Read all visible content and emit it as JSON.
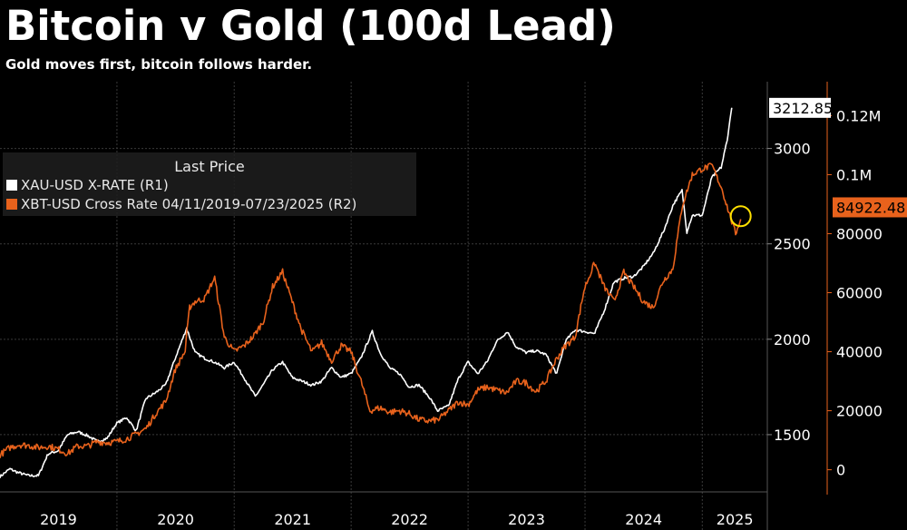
{
  "header": {
    "title": "Bitcoin v Gold (100d Lead)",
    "subtitle": "Gold moves first, bitcoin follows harder."
  },
  "legend": {
    "title": "Last Price",
    "items": [
      {
        "label": "XAU-USD X-RATE  (R1)",
        "color": "#ffffff"
      },
      {
        "label": "XBT-USD Cross Rate 04/11/2019-07/23/2025  (R2)",
        "color": "#e8621c"
      }
    ]
  },
  "chart_data": {
    "type": "line",
    "title": "Bitcoin v Gold (100d Lead)",
    "subtitle": "Gold moves first, bitcoin follows harder.",
    "x_tick_labels": [
      "2019",
      "2020",
      "2021",
      "2022",
      "2023",
      "2024",
      "2025"
    ],
    "x_range": [
      "2019-01-01",
      "2025-07-23"
    ],
    "y_axes": {
      "R1": {
        "ticks": [
          "1500",
          "2000",
          "2500",
          "3000"
        ],
        "range": [
          1200,
          3350
        ],
        "color": "#ffffff"
      },
      "R2": {
        "ticks": [
          "0",
          "20000",
          "40000",
          "60000",
          "80000",
          "0.1M",
          "0.12M"
        ],
        "range": [
          -7500,
          131500
        ],
        "color": "#e8621c"
      }
    },
    "last_price_labels": {
      "gold": "3212.85",
      "bitcoin": "84922.48"
    },
    "grid": true,
    "legend_position": "top-left",
    "series": [
      {
        "name": "XAU-USD X-RATE  (R1)",
        "axis": "R1",
        "color": "#ffffff",
        "points": [
          [
            "2019-01-01",
            1280
          ],
          [
            "2019-02-01",
            1320
          ],
          [
            "2019-03-01",
            1300
          ],
          [
            "2019-04-01",
            1285
          ],
          [
            "2019-05-01",
            1285
          ],
          [
            "2019-06-01",
            1400
          ],
          [
            "2019-07-01",
            1415
          ],
          [
            "2019-08-01",
            1500
          ],
          [
            "2019-09-01",
            1515
          ],
          [
            "2019-10-01",
            1495
          ],
          [
            "2019-11-01",
            1465
          ],
          [
            "2019-12-01",
            1480
          ],
          [
            "2020-01-01",
            1560
          ],
          [
            "2020-02-01",
            1590
          ],
          [
            "2020-03-01",
            1520
          ],
          [
            "2020-04-01",
            1690
          ],
          [
            "2020-05-01",
            1720
          ],
          [
            "2020-06-01",
            1760
          ],
          [
            "2020-07-01",
            1900
          ],
          [
            "2020-08-06",
            2060
          ],
          [
            "2020-09-01",
            1930
          ],
          [
            "2020-10-01",
            1900
          ],
          [
            "2020-11-01",
            1880
          ],
          [
            "2020-12-01",
            1850
          ],
          [
            "2021-01-01",
            1880
          ],
          [
            "2021-02-01",
            1800
          ],
          [
            "2021-03-08",
            1700
          ],
          [
            "2021-04-01",
            1760
          ],
          [
            "2021-05-01",
            1840
          ],
          [
            "2021-06-01",
            1880
          ],
          [
            "2021-07-01",
            1800
          ],
          [
            "2021-08-01",
            1780
          ],
          [
            "2021-09-01",
            1760
          ],
          [
            "2021-10-01",
            1780
          ],
          [
            "2021-11-01",
            1850
          ],
          [
            "2021-12-01",
            1800
          ],
          [
            "2022-01-01",
            1820
          ],
          [
            "2022-02-01",
            1900
          ],
          [
            "2022-03-08",
            2040
          ],
          [
            "2022-04-01",
            1930
          ],
          [
            "2022-05-01",
            1850
          ],
          [
            "2022-06-01",
            1820
          ],
          [
            "2022-07-01",
            1750
          ],
          [
            "2022-08-01",
            1760
          ],
          [
            "2022-09-01",
            1700
          ],
          [
            "2022-09-28",
            1625
          ],
          [
            "2022-11-01",
            1650
          ],
          [
            "2022-12-01",
            1790
          ],
          [
            "2023-01-01",
            1880
          ],
          [
            "2023-02-01",
            1820
          ],
          [
            "2023-03-01",
            1880
          ],
          [
            "2023-04-01",
            1990
          ],
          [
            "2023-05-04",
            2040
          ],
          [
            "2023-06-01",
            1960
          ],
          [
            "2023-07-01",
            1930
          ],
          [
            "2023-08-01",
            1940
          ],
          [
            "2023-09-01",
            1920
          ],
          [
            "2023-10-05",
            1820
          ],
          [
            "2023-11-01",
            1990
          ],
          [
            "2023-12-01",
            2050
          ],
          [
            "2024-01-01",
            2040
          ],
          [
            "2024-02-01",
            2030
          ],
          [
            "2024-03-01",
            2150
          ],
          [
            "2024-04-01",
            2300
          ],
          [
            "2024-05-01",
            2320
          ],
          [
            "2024-06-01",
            2330
          ],
          [
            "2024-07-01",
            2380
          ],
          [
            "2024-08-01",
            2450
          ],
          [
            "2024-09-01",
            2560
          ],
          [
            "2024-10-01",
            2700
          ],
          [
            "2024-10-30",
            2780
          ],
          [
            "2024-11-14",
            2560
          ],
          [
            "2024-12-01",
            2650
          ],
          [
            "2025-01-01",
            2650
          ],
          [
            "2025-02-01",
            2850
          ],
          [
            "2025-03-01",
            2900
          ],
          [
            "2025-03-20",
            3040
          ],
          [
            "2025-04-03",
            3212.85
          ]
        ]
      },
      {
        "name": "XBT-USD Cross Rate 04/11/2019-07/23/2025  (R2)",
        "axis": "R2",
        "color": "#e8621c",
        "points": [
          [
            "2019-01-01",
            5000
          ],
          [
            "2019-02-01",
            7500
          ],
          [
            "2019-03-01",
            8500
          ],
          [
            "2019-04-01",
            8200
          ],
          [
            "2019-05-01",
            7500
          ],
          [
            "2019-06-01",
            8000
          ],
          [
            "2019-07-01",
            7000
          ],
          [
            "2019-08-01",
            5500
          ],
          [
            "2019-09-01",
            8000
          ],
          [
            "2019-10-01",
            8000
          ],
          [
            "2019-11-01",
            9500
          ],
          [
            "2019-12-01",
            9200
          ],
          [
            "2020-01-01",
            9500
          ],
          [
            "2020-02-01",
            10500
          ],
          [
            "2020-03-01",
            12000
          ],
          [
            "2020-04-01",
            14000
          ],
          [
            "2020-05-01",
            19000
          ],
          [
            "2020-06-01",
            23000
          ],
          [
            "2020-07-01",
            34000
          ],
          [
            "2020-08-01",
            40000
          ],
          [
            "2020-08-15",
            55000
          ],
          [
            "2020-09-01",
            57000
          ],
          [
            "2020-10-01",
            58000
          ],
          [
            "2020-11-01",
            65000
          ],
          [
            "2020-12-01",
            45000
          ],
          [
            "2021-01-01",
            40000
          ],
          [
            "2021-02-01",
            42000
          ],
          [
            "2021-03-01",
            45000
          ],
          [
            "2021-04-01",
            50000
          ],
          [
            "2021-05-01",
            62000
          ],
          [
            "2021-06-01",
            67000
          ],
          [
            "2021-07-01",
            57000
          ],
          [
            "2021-08-01",
            47000
          ],
          [
            "2021-09-01",
            40000
          ],
          [
            "2021-10-01",
            43000
          ],
          [
            "2021-11-01",
            37000
          ],
          [
            "2021-12-01",
            42000
          ],
          [
            "2022-01-01",
            40000
          ],
          [
            "2022-02-01",
            30000
          ],
          [
            "2022-03-01",
            20000
          ],
          [
            "2022-04-01",
            21000
          ],
          [
            "2022-05-01",
            19500
          ],
          [
            "2022-06-01",
            20000
          ],
          [
            "2022-07-01",
            19000
          ],
          [
            "2022-08-01",
            17000
          ],
          [
            "2022-09-01",
            16500
          ],
          [
            "2022-10-01",
            17000
          ],
          [
            "2022-11-01",
            20000
          ],
          [
            "2022-12-01",
            23000
          ],
          [
            "2023-01-01",
            22000
          ],
          [
            "2023-02-01",
            27000
          ],
          [
            "2023-03-01",
            28000
          ],
          [
            "2023-04-01",
            27000
          ],
          [
            "2023-05-01",
            26000
          ],
          [
            "2023-06-01",
            30000
          ],
          [
            "2023-07-01",
            29500
          ],
          [
            "2023-08-01",
            26500
          ],
          [
            "2023-09-01",
            30000
          ],
          [
            "2023-10-01",
            37000
          ],
          [
            "2023-11-01",
            42000
          ],
          [
            "2023-12-01",
            45000
          ],
          [
            "2024-01-01",
            62000
          ],
          [
            "2024-02-01",
            70000
          ],
          [
            "2024-03-01",
            62000
          ],
          [
            "2024-04-01",
            57000
          ],
          [
            "2024-05-01",
            67000
          ],
          [
            "2024-06-01",
            62000
          ],
          [
            "2024-07-01",
            57000
          ],
          [
            "2024-08-01",
            55000
          ],
          [
            "2024-09-01",
            64000
          ],
          [
            "2024-10-01",
            68000
          ],
          [
            "2024-11-01",
            90000
          ],
          [
            "2024-12-01",
            100000
          ],
          [
            "2025-01-01",
            102000
          ],
          [
            "2025-02-01",
            103000
          ],
          [
            "2025-03-01",
            96000
          ],
          [
            "2025-04-01",
            85000
          ],
          [
            "2025-04-15",
            80000
          ],
          [
            "2025-05-01",
            84922.48
          ]
        ]
      }
    ],
    "annotations": [
      {
        "type": "circle",
        "date": "2025-05-01",
        "value_R1": 2645,
        "color": "#ffe000"
      }
    ]
  }
}
